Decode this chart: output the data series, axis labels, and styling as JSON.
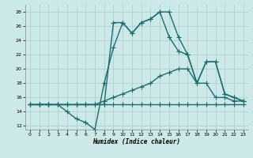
{
  "color": "#1a6e6e",
  "background_color": "#cce8e8",
  "grid_color": "#aacccc",
  "xlim": [
    -0.5,
    23.5
  ],
  "ylim": [
    11.5,
    29.0
  ],
  "yticks": [
    12,
    14,
    16,
    18,
    20,
    22,
    24,
    26,
    28
  ],
  "xticks": [
    0,
    1,
    2,
    3,
    4,
    5,
    6,
    7,
    8,
    9,
    10,
    11,
    12,
    13,
    14,
    15,
    16,
    17,
    18,
    19,
    20,
    21,
    22,
    23
  ],
  "xlabel": "Humidex (Indice chaleur)",
  "marker": "+",
  "linewidth": 1.0,
  "markersize": 4,
  "series": [
    {
      "x": [
        0,
        1,
        2,
        3,
        4,
        5,
        6,
        7,
        8,
        9,
        10,
        11,
        12,
        13,
        14,
        15,
        16,
        17,
        18,
        19,
        20,
        21,
        22,
        23
      ],
      "y": [
        15,
        15,
        15,
        15,
        15,
        15,
        15,
        15,
        15,
        15,
        15,
        15,
        15,
        15,
        15,
        15,
        15,
        15,
        15,
        15,
        15,
        15,
        15,
        15
      ]
    },
    {
      "x": [
        0,
        1,
        2,
        3,
        4,
        5,
        6,
        7,
        8,
        9,
        10,
        11,
        12,
        13,
        14,
        15,
        16,
        17,
        18,
        19,
        20,
        21,
        22,
        23
      ],
      "y": [
        15,
        15,
        15,
        15,
        15,
        15,
        15,
        15,
        15.5,
        16,
        16.5,
        17,
        17.5,
        18,
        19,
        19.5,
        20,
        20,
        18,
        18,
        16,
        16,
        15.5,
        15.5
      ]
    },
    {
      "x": [
        0,
        1,
        2,
        3,
        4,
        5,
        6,
        7,
        8,
        9,
        10,
        11,
        12,
        13,
        14,
        15,
        16,
        17,
        18,
        19,
        20,
        21,
        22,
        23
      ],
      "y": [
        15,
        15,
        15,
        15,
        14,
        13,
        12.5,
        11.5,
        18,
        23,
        26.5,
        25,
        26.5,
        27,
        28,
        24.5,
        22.5,
        22,
        18,
        21,
        21,
        16.5,
        16,
        15.5
      ]
    },
    {
      "x": [
        0,
        1,
        2,
        3,
        4,
        5,
        6,
        7,
        8,
        9,
        10,
        11,
        12,
        13,
        14,
        15,
        16,
        17,
        18,
        19,
        20,
        21,
        22,
        23
      ],
      "y": [
        15,
        15,
        15,
        15,
        15,
        15,
        15,
        15,
        15,
        26.5,
        26.5,
        25,
        26.5,
        27,
        28,
        28,
        24.5,
        22,
        18,
        21,
        21,
        16.5,
        16,
        15.5
      ]
    }
  ]
}
